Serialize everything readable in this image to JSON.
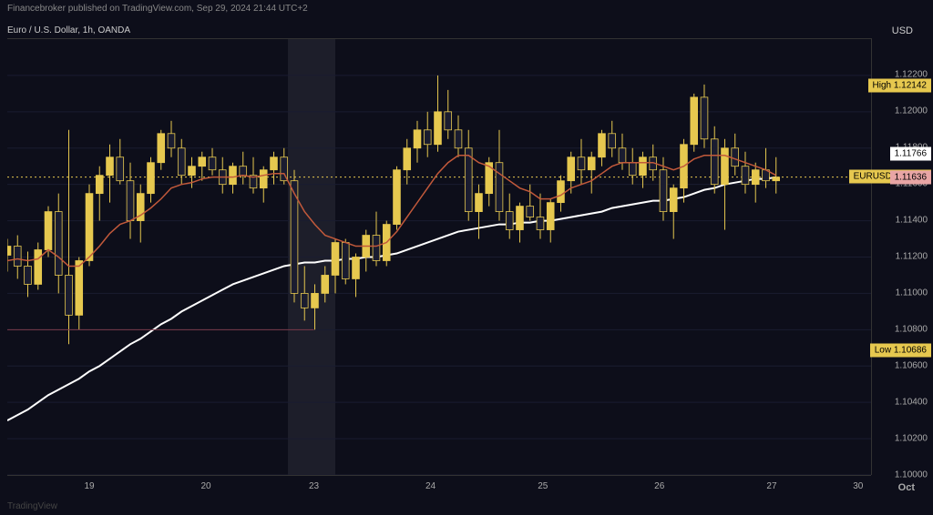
{
  "header": {
    "text": "Financebroker published on TradingView.com, Sep 29, 2024 21:44 UTC+2"
  },
  "symbol": "Euro / U.S. Dollar, 1h, OANDA",
  "currency": "USD",
  "month": "Oct",
  "watermark": "TradingView",
  "chart": {
    "type": "candlestick",
    "background": "#0d0e1a",
    "grid_color": "#1a1c30",
    "candle_up": "#e6c84f",
    "candle_down": "#1a1c30",
    "candle_border": "#e6c84f",
    "ma_fast_color": "#c2593b",
    "ma_slow_color": "#ffffff",
    "hline_color": "#e6c84f",
    "ylim": [
      1.1,
      1.124
    ],
    "yticks": [
      1.1,
      1.102,
      1.104,
      1.106,
      1.108,
      1.11,
      1.112,
      1.114,
      1.116,
      1.118,
      1.12,
      1.122
    ],
    "xticks": [
      {
        "x": 0.095,
        "label": "19"
      },
      {
        "x": 0.23,
        "label": "20"
      },
      {
        "x": 0.355,
        "label": "23"
      },
      {
        "x": 0.49,
        "label": "24"
      },
      {
        "x": 0.62,
        "label": "25"
      },
      {
        "x": 0.755,
        "label": "26"
      },
      {
        "x": 0.885,
        "label": "27"
      },
      {
        "x": 0.985,
        "label": "30"
      }
    ],
    "session_band": {
      "x": 0.325,
      "width": 0.055
    },
    "price_labels": [
      {
        "y": 1.12142,
        "text": "High  1.12142",
        "cls": "high-label"
      },
      {
        "y": 1.11766,
        "text": "1.11766",
        "cls": "white-label"
      },
      {
        "y": 1.1164,
        "text": "EURUSD  1.11640",
        "cls": "eurusd-label"
      },
      {
        "y": 1.11636,
        "text": "1.11636",
        "cls": "pink-label"
      },
      {
        "y": 1.10686,
        "text": "Low  1.10686",
        "cls": "low-label"
      }
    ],
    "hline": 1.1164,
    "candles": [
      {
        "o": 1.1121,
        "h": 1.113,
        "l": 1.1112,
        "c": 1.1126
      },
      {
        "o": 1.1126,
        "h": 1.1132,
        "l": 1.1108,
        "c": 1.1115
      },
      {
        "o": 1.1115,
        "h": 1.1123,
        "l": 1.1098,
        "c": 1.1105
      },
      {
        "o": 1.1105,
        "h": 1.1128,
        "l": 1.1102,
        "c": 1.1124
      },
      {
        "o": 1.1124,
        "h": 1.1148,
        "l": 1.112,
        "c": 1.1145
      },
      {
        "o": 1.1145,
        "h": 1.1155,
        "l": 1.11,
        "c": 1.111
      },
      {
        "o": 1.111,
        "h": 1.119,
        "l": 1.1072,
        "c": 1.1088
      },
      {
        "o": 1.1088,
        "h": 1.112,
        "l": 1.108,
        "c": 1.1118
      },
      {
        "o": 1.1118,
        "h": 1.116,
        "l": 1.1115,
        "c": 1.1155
      },
      {
        "o": 1.1155,
        "h": 1.117,
        "l": 1.114,
        "c": 1.1165
      },
      {
        "o": 1.1165,
        "h": 1.1182,
        "l": 1.115,
        "c": 1.1175
      },
      {
        "o": 1.1175,
        "h": 1.1185,
        "l": 1.116,
        "c": 1.1162
      },
      {
        "o": 1.1162,
        "h": 1.1172,
        "l": 1.113,
        "c": 1.114
      },
      {
        "o": 1.114,
        "h": 1.116,
        "l": 1.1128,
        "c": 1.1155
      },
      {
        "o": 1.1155,
        "h": 1.1175,
        "l": 1.115,
        "c": 1.1172
      },
      {
        "o": 1.1172,
        "h": 1.119,
        "l": 1.1168,
        "c": 1.1188
      },
      {
        "o": 1.1188,
        "h": 1.1195,
        "l": 1.1175,
        "c": 1.118
      },
      {
        "o": 1.118,
        "h": 1.1185,
        "l": 1.116,
        "c": 1.1165
      },
      {
        "o": 1.1165,
        "h": 1.1175,
        "l": 1.1158,
        "c": 1.117
      },
      {
        "o": 1.117,
        "h": 1.1178,
        "l": 1.1162,
        "c": 1.1175
      },
      {
        "o": 1.1175,
        "h": 1.118,
        "l": 1.1165,
        "c": 1.1168
      },
      {
        "o": 1.1168,
        "h": 1.1175,
        "l": 1.1155,
        "c": 1.116
      },
      {
        "o": 1.116,
        "h": 1.1172,
        "l": 1.1155,
        "c": 1.117
      },
      {
        "o": 1.117,
        "h": 1.1178,
        "l": 1.116,
        "c": 1.1165
      },
      {
        "o": 1.1165,
        "h": 1.1175,
        "l": 1.1155,
        "c": 1.1158
      },
      {
        "o": 1.1158,
        "h": 1.117,
        "l": 1.115,
        "c": 1.1168
      },
      {
        "o": 1.1168,
        "h": 1.1178,
        "l": 1.116,
        "c": 1.1175
      },
      {
        "o": 1.1175,
        "h": 1.118,
        "l": 1.116,
        "c": 1.1162
      },
      {
        "o": 1.1162,
        "h": 1.1168,
        "l": 1.1095,
        "c": 1.11
      },
      {
        "o": 1.11,
        "h": 1.1115,
        "l": 1.1085,
        "c": 1.1092
      },
      {
        "o": 1.1092,
        "h": 1.1105,
        "l": 1.108,
        "c": 1.11
      },
      {
        "o": 1.11,
        "h": 1.1115,
        "l": 1.1095,
        "c": 1.111
      },
      {
        "o": 1.111,
        "h": 1.113,
        "l": 1.11,
        "c": 1.1128
      },
      {
        "o": 1.1128,
        "h": 1.113,
        "l": 1.1105,
        "c": 1.1108
      },
      {
        "o": 1.1108,
        "h": 1.1122,
        "l": 1.1098,
        "c": 1.112
      },
      {
        "o": 1.112,
        "h": 1.1135,
        "l": 1.1112,
        "c": 1.1132
      },
      {
        "o": 1.1132,
        "h": 1.1145,
        "l": 1.1115,
        "c": 1.1118
      },
      {
        "o": 1.1118,
        "h": 1.114,
        "l": 1.1115,
        "c": 1.1138
      },
      {
        "o": 1.1138,
        "h": 1.117,
        "l": 1.1135,
        "c": 1.1168
      },
      {
        "o": 1.1168,
        "h": 1.1185,
        "l": 1.116,
        "c": 1.118
      },
      {
        "o": 1.118,
        "h": 1.1195,
        "l": 1.1172,
        "c": 1.119
      },
      {
        "o": 1.119,
        "h": 1.12,
        "l": 1.1175,
        "c": 1.1182
      },
      {
        "o": 1.1182,
        "h": 1.122,
        "l": 1.1178,
        "c": 1.12
      },
      {
        "o": 1.12,
        "h": 1.1212,
        "l": 1.1185,
        "c": 1.119
      },
      {
        "o": 1.119,
        "h": 1.1198,
        "l": 1.1175,
        "c": 1.118
      },
      {
        "o": 1.118,
        "h": 1.119,
        "l": 1.114,
        "c": 1.1145
      },
      {
        "o": 1.1145,
        "h": 1.116,
        "l": 1.113,
        "c": 1.1155
      },
      {
        "o": 1.1155,
        "h": 1.1175,
        "l": 1.1148,
        "c": 1.1172
      },
      {
        "o": 1.1172,
        "h": 1.119,
        "l": 1.114,
        "c": 1.1145
      },
      {
        "o": 1.1145,
        "h": 1.1155,
        "l": 1.113,
        "c": 1.1135
      },
      {
        "o": 1.1135,
        "h": 1.115,
        "l": 1.1128,
        "c": 1.1148
      },
      {
        "o": 1.1148,
        "h": 1.116,
        "l": 1.114,
        "c": 1.1142
      },
      {
        "o": 1.1142,
        "h": 1.1155,
        "l": 1.113,
        "c": 1.1135
      },
      {
        "o": 1.1135,
        "h": 1.1152,
        "l": 1.1128,
        "c": 1.115
      },
      {
        "o": 1.115,
        "h": 1.1165,
        "l": 1.1145,
        "c": 1.1162
      },
      {
        "o": 1.1162,
        "h": 1.1178,
        "l": 1.1155,
        "c": 1.1175
      },
      {
        "o": 1.1175,
        "h": 1.1185,
        "l": 1.116,
        "c": 1.1168
      },
      {
        "o": 1.1168,
        "h": 1.1178,
        "l": 1.1155,
        "c": 1.1175
      },
      {
        "o": 1.1175,
        "h": 1.119,
        "l": 1.117,
        "c": 1.1188
      },
      {
        "o": 1.1188,
        "h": 1.1195,
        "l": 1.1175,
        "c": 1.118
      },
      {
        "o": 1.118,
        "h": 1.1188,
        "l": 1.1168,
        "c": 1.1172
      },
      {
        "o": 1.1172,
        "h": 1.118,
        "l": 1.116,
        "c": 1.1165
      },
      {
        "o": 1.1165,
        "h": 1.1178,
        "l": 1.1158,
        "c": 1.1175
      },
      {
        "o": 1.1175,
        "h": 1.1182,
        "l": 1.1162,
        "c": 1.1168
      },
      {
        "o": 1.1168,
        "h": 1.1175,
        "l": 1.114,
        "c": 1.1145
      },
      {
        "o": 1.1145,
        "h": 1.116,
        "l": 1.113,
        "c": 1.1158
      },
      {
        "o": 1.1158,
        "h": 1.1185,
        "l": 1.115,
        "c": 1.1182
      },
      {
        "o": 1.1182,
        "h": 1.121,
        "l": 1.1178,
        "c": 1.1208
      },
      {
        "o": 1.1208,
        "h": 1.1215,
        "l": 1.118,
        "c": 1.1185
      },
      {
        "o": 1.1185,
        "h": 1.1192,
        "l": 1.1155,
        "c": 1.116
      },
      {
        "o": 1.116,
        "h": 1.1185,
        "l": 1.1135,
        "c": 1.118
      },
      {
        "o": 1.118,
        "h": 1.1188,
        "l": 1.1165,
        "c": 1.117
      },
      {
        "o": 1.117,
        "h": 1.1178,
        "l": 1.1155,
        "c": 1.116
      },
      {
        "o": 1.116,
        "h": 1.1172,
        "l": 1.115,
        "c": 1.1168
      },
      {
        "o": 1.1168,
        "h": 1.118,
        "l": 1.1158,
        "c": 1.1162
      },
      {
        "o": 1.1162,
        "h": 1.1175,
        "l": 1.1155,
        "c": 1.1164
      }
    ],
    "ma_fast": [
      1.1118,
      1.1119,
      1.1118,
      1.1119,
      1.1124,
      1.112,
      1.1115,
      1.1115,
      1.112,
      1.1126,
      1.1133,
      1.1138,
      1.114,
      1.1143,
      1.1147,
      1.1152,
      1.1158,
      1.116,
      1.1161,
      1.1163,
      1.1164,
      1.1164,
      1.1164,
      1.1165,
      1.1164,
      1.1165,
      1.1166,
      1.1166,
      1.1155,
      1.1145,
      1.1138,
      1.1132,
      1.113,
      1.1128,
      1.1126,
      1.1126,
      1.1126,
      1.1128,
      1.1134,
      1.1142,
      1.115,
      1.1158,
      1.1166,
      1.1172,
      1.1176,
      1.1176,
      1.1172,
      1.117,
      1.1166,
      1.1162,
      1.1158,
      1.1156,
      1.1152,
      1.1152,
      1.1154,
      1.1158,
      1.116,
      1.1162,
      1.1166,
      1.117,
      1.1172,
      1.1172,
      1.1172,
      1.1172,
      1.117,
      1.1168,
      1.117,
      1.1174,
      1.1176,
      1.1176,
      1.1176,
      1.1174,
      1.1172,
      1.117,
      1.1168,
      1.1165
    ],
    "ma_slow": [
      1.103,
      1.1033,
      1.1036,
      1.104,
      1.1044,
      1.1047,
      1.105,
      1.1053,
      1.1057,
      1.106,
      1.1064,
      1.1068,
      1.1072,
      1.1075,
      1.1079,
      1.1083,
      1.1086,
      1.109,
      1.1093,
      1.1096,
      1.1099,
      1.1102,
      1.1105,
      1.1107,
      1.1109,
      1.1111,
      1.1113,
      1.1115,
      1.1116,
      1.1117,
      1.1117,
      1.1118,
      1.1118,
      1.1119,
      1.1119,
      1.112,
      1.112,
      1.1121,
      1.1122,
      1.1124,
      1.1126,
      1.1128,
      1.113,
      1.1132,
      1.1134,
      1.1135,
      1.1136,
      1.1137,
      1.1138,
      1.1138,
      1.1139,
      1.1139,
      1.114,
      1.114,
      1.1141,
      1.1142,
      1.1143,
      1.1144,
      1.1145,
      1.1147,
      1.1148,
      1.1149,
      1.115,
      1.1151,
      1.1151,
      1.1152,
      1.1153,
      1.1155,
      1.1157,
      1.1158,
      1.116,
      1.1161,
      1.1162,
      1.1163,
      1.1163,
      1.1164
    ]
  }
}
